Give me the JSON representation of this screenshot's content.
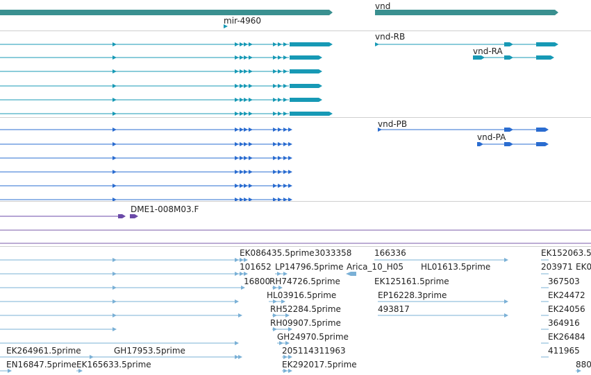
{
  "colors": {
    "gene": "#3a9090",
    "transcript_teal": "#1799b5",
    "transcript_blue": "#2a6cd0",
    "transcript_purple": "#6b4aa8",
    "est": "#7ab0d6",
    "separator": "#cfcfcf",
    "purple_line": "#7a5aa8",
    "label": "#222222"
  },
  "tracks": {
    "genes": {
      "labels": [
        {
          "id": "vnd",
          "text": "vnd"
        },
        {
          "id": "mir",
          "text": "mir-4960"
        }
      ]
    },
    "teal_transcripts": {
      "labels": [
        {
          "id": "vnd-rb",
          "text": "vnd-RB"
        },
        {
          "id": "vnd-ra",
          "text": "vnd-RA"
        }
      ]
    },
    "blue_transcripts": {
      "labels": [
        {
          "id": "vnd-pb",
          "text": "vnd-PB"
        },
        {
          "id": "vnd-pa",
          "text": "vnd-PA"
        }
      ]
    },
    "purple_transcripts": {
      "labels": [
        {
          "id": "dme1",
          "text": "DME1-008M03.F"
        }
      ]
    },
    "est_alignments": {
      "labels": [
        {
          "id": "ek086435",
          "text": "EK086435.5prime"
        },
        {
          "id": "n3033358",
          "text": "3033358"
        },
        {
          "id": "n166336",
          "text": "166336"
        },
        {
          "id": "ek152063",
          "text": "EK152063.5"
        },
        {
          "id": "n101652",
          "text": "101652"
        },
        {
          "id": "lp14796",
          "text": "LP14796.5prime"
        },
        {
          "id": "arica",
          "text": "Arica_10_H05"
        },
        {
          "id": "hl01613",
          "text": "HL01613.5prime"
        },
        {
          "id": "n203971",
          "text": "203971"
        },
        {
          "id": "ek0",
          "text": "EK0"
        },
        {
          "id": "n16800",
          "text": "16800"
        },
        {
          "id": "rh74726",
          "text": "RH74726.5prime"
        },
        {
          "id": "ek125161",
          "text": "EK125161.5prime"
        },
        {
          "id": "n367503",
          "text": "367503"
        },
        {
          "id": "hl03916",
          "text": "HL03916.5prime"
        },
        {
          "id": "ep16228",
          "text": "EP16228.3prime"
        },
        {
          "id": "ek24472",
          "text": "EK24472"
        },
        {
          "id": "rh52284",
          "text": "RH52284.5prime"
        },
        {
          "id": "n493817",
          "text": "493817"
        },
        {
          "id": "ek24056",
          "text": "EK24056"
        },
        {
          "id": "rh09907",
          "text": "RH09907.5prime"
        },
        {
          "id": "n364916",
          "text": "364916"
        },
        {
          "id": "gh24970",
          "text": "GH24970.5prime"
        },
        {
          "id": "ek26484",
          "text": "EK26484"
        },
        {
          "id": "ek264961",
          "text": "EK264961.5prime"
        },
        {
          "id": "gh17953",
          "text": "GH17953.5prime"
        },
        {
          "id": "n205114311963",
          "text": "205114311963"
        },
        {
          "id": "n411965",
          "text": "411965"
        },
        {
          "id": "en16847",
          "text": "EN16847.5prime"
        },
        {
          "id": "ek165633",
          "text": "EK165633.5prime"
        },
        {
          "id": "ek292017",
          "text": "EK292017.5prime"
        },
        {
          "id": "n880",
          "text": "880"
        }
      ]
    }
  }
}
